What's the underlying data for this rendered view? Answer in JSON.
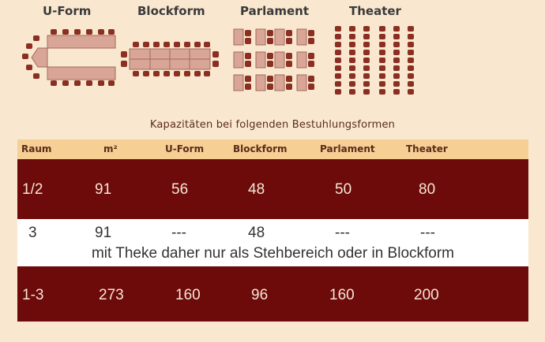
{
  "layouts": {
    "uform": "U-Form",
    "blockform": "Blockform",
    "parlament": "Parlament",
    "theater": "Theater"
  },
  "caption": "Kapazitäten bei folgenden Bestuhlungsformen",
  "table": {
    "headers": [
      "Raum",
      "m²",
      "U-Form",
      "Blockform",
      "Parlament",
      "Theater"
    ],
    "rows": [
      [
        "1/2",
        "91",
        "56",
        "48",
        "50",
        "80"
      ],
      [
        "3",
        "91",
        "---",
        "48",
        "---",
        "---"
      ],
      [
        "1-3",
        "273",
        "160",
        "96",
        "160",
        "200"
      ]
    ],
    "note": "mit Theke daher nur als Stehbereich oder in Blockform"
  },
  "colors": {
    "background": "#f9e8cf",
    "row_dark": "#6d0a0a",
    "header_bg": "#f6cf94",
    "chair": "#8a2f22",
    "table": "#d9a596"
  }
}
